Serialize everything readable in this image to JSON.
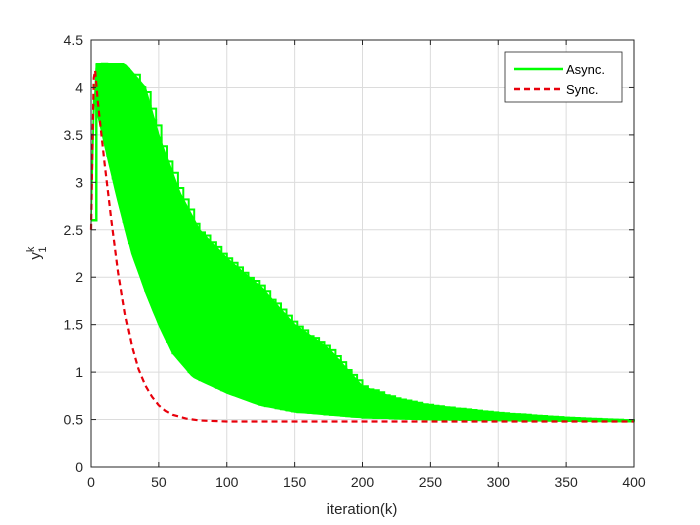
{
  "chart_data": {
    "type": "line",
    "xlabel": "iteration(k)",
    "ylabel": "y",
    "ylabel_sup": "k",
    "ylabel_sub": "1",
    "xlim": [
      0,
      400
    ],
    "ylim": [
      0,
      4.5
    ],
    "xticks": [
      "0",
      "50",
      "100",
      "150",
      "200",
      "250",
      "300",
      "350",
      "400"
    ],
    "yticks": [
      "0",
      "0.5",
      "1",
      "1.5",
      "2",
      "2.5",
      "3",
      "3.5",
      "4",
      "4.5"
    ],
    "grid": true,
    "legend_position": "top-right",
    "series": [
      {
        "name": "Async.",
        "style": "solid",
        "color": "#00ff00",
        "description": "ensemble of many asynchronous runs",
        "band_upper": [
          [
            0,
            2.6
          ],
          [
            3,
            4.25
          ],
          [
            25,
            4.25
          ],
          [
            40,
            4.0
          ],
          [
            50,
            3.5
          ],
          [
            65,
            2.9
          ],
          [
            80,
            2.5
          ],
          [
            100,
            2.2
          ],
          [
            125,
            1.9
          ],
          [
            150,
            1.5
          ],
          [
            175,
            1.25
          ],
          [
            200,
            0.85
          ],
          [
            225,
            0.72
          ],
          [
            250,
            0.65
          ],
          [
            300,
            0.57
          ],
          [
            350,
            0.52
          ],
          [
            400,
            0.49
          ]
        ],
        "band_lower": [
          [
            0,
            2.6
          ],
          [
            2,
            3.9
          ],
          [
            10,
            3.4
          ],
          [
            20,
            2.8
          ],
          [
            30,
            2.25
          ],
          [
            40,
            1.85
          ],
          [
            50,
            1.5
          ],
          [
            60,
            1.2
          ],
          [
            75,
            0.95
          ],
          [
            100,
            0.78
          ],
          [
            125,
            0.65
          ],
          [
            150,
            0.58
          ],
          [
            175,
            0.55
          ],
          [
            200,
            0.52
          ],
          [
            250,
            0.5
          ],
          [
            300,
            0.49
          ],
          [
            400,
            0.48
          ]
        ]
      },
      {
        "name": "Sync.",
        "style": "dashed",
        "color": "#e8000b",
        "points": [
          [
            0,
            2.5
          ],
          [
            1,
            3.4
          ],
          [
            2,
            4.1
          ],
          [
            3,
            4.18
          ],
          [
            5,
            3.85
          ],
          [
            10,
            3.2
          ],
          [
            15,
            2.6
          ],
          [
            20,
            2.05
          ],
          [
            25,
            1.62
          ],
          [
            30,
            1.28
          ],
          [
            35,
            1.03
          ],
          [
            40,
            0.86
          ],
          [
            45,
            0.74
          ],
          [
            50,
            0.65
          ],
          [
            55,
            0.59
          ],
          [
            60,
            0.55
          ],
          [
            70,
            0.51
          ],
          [
            80,
            0.49
          ],
          [
            100,
            0.48
          ],
          [
            150,
            0.48
          ],
          [
            200,
            0.48
          ],
          [
            250,
            0.48
          ],
          [
            300,
            0.48
          ],
          [
            350,
            0.48
          ],
          [
            400,
            0.48
          ]
        ]
      }
    ]
  }
}
